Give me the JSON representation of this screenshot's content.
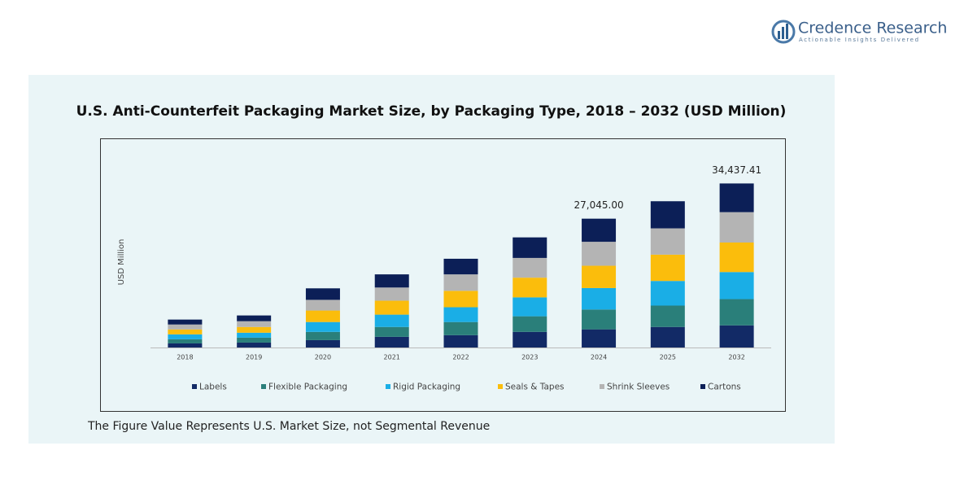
{
  "brand": {
    "name": "Credence Research",
    "tagline": "Actionable Insights Delivered"
  },
  "chart_data": {
    "type": "stacked-bar",
    "title": "U.S. Anti-Counterfeit Packaging Market Size, by Packaging Type, 2018 – 2032 (USD Million)",
    "y_label": "USD Million",
    "categories": [
      "2018",
      "2019",
      "2020",
      "2021",
      "2022",
      "2023",
      "2024",
      "2025",
      "2032"
    ],
    "series": [
      {
        "name": "Labels",
        "color": "#122a66",
        "values": [
          863,
          1035,
          1553,
          2243,
          2588,
          3278,
          3814,
          4313,
          4649
        ]
      },
      {
        "name": "Flexible Packaging",
        "color": "#2a7f7a",
        "values": [
          863,
          1035,
          1725,
          2070,
          2760,
          3278,
          4161,
          4485,
          5510
        ]
      },
      {
        "name": "Rigid Packaging",
        "color": "#1aaee6",
        "values": [
          1035,
          1035,
          2070,
          2588,
          3105,
          3968,
          4508,
          5175,
          5682
        ]
      },
      {
        "name": "Seals & Tapes",
        "color": "#fbbd0c",
        "values": [
          1035,
          1208,
          2415,
          2933,
          3450,
          4140,
          4681,
          5520,
          6199
        ]
      },
      {
        "name": "Shrink Sleeves",
        "color": "#b4b4b4",
        "values": [
          1035,
          1208,
          2243,
          2760,
          3450,
          4140,
          5028,
          5520,
          6371
        ]
      },
      {
        "name": "Cartons",
        "color": "#0c1f57",
        "values": [
          1035,
          1208,
          2415,
          2760,
          3278,
          4313,
          4853,
          5693,
          6026.41
        ]
      }
    ],
    "ylim": [
      0,
      41000
    ],
    "annotations": [
      {
        "category": "2024",
        "text": "27,045.00"
      },
      {
        "category": "2032",
        "text": "34,437.41"
      }
    ],
    "footnote": "The Figure Value Represents U.S. Market Size, not Segmental Revenue"
  }
}
